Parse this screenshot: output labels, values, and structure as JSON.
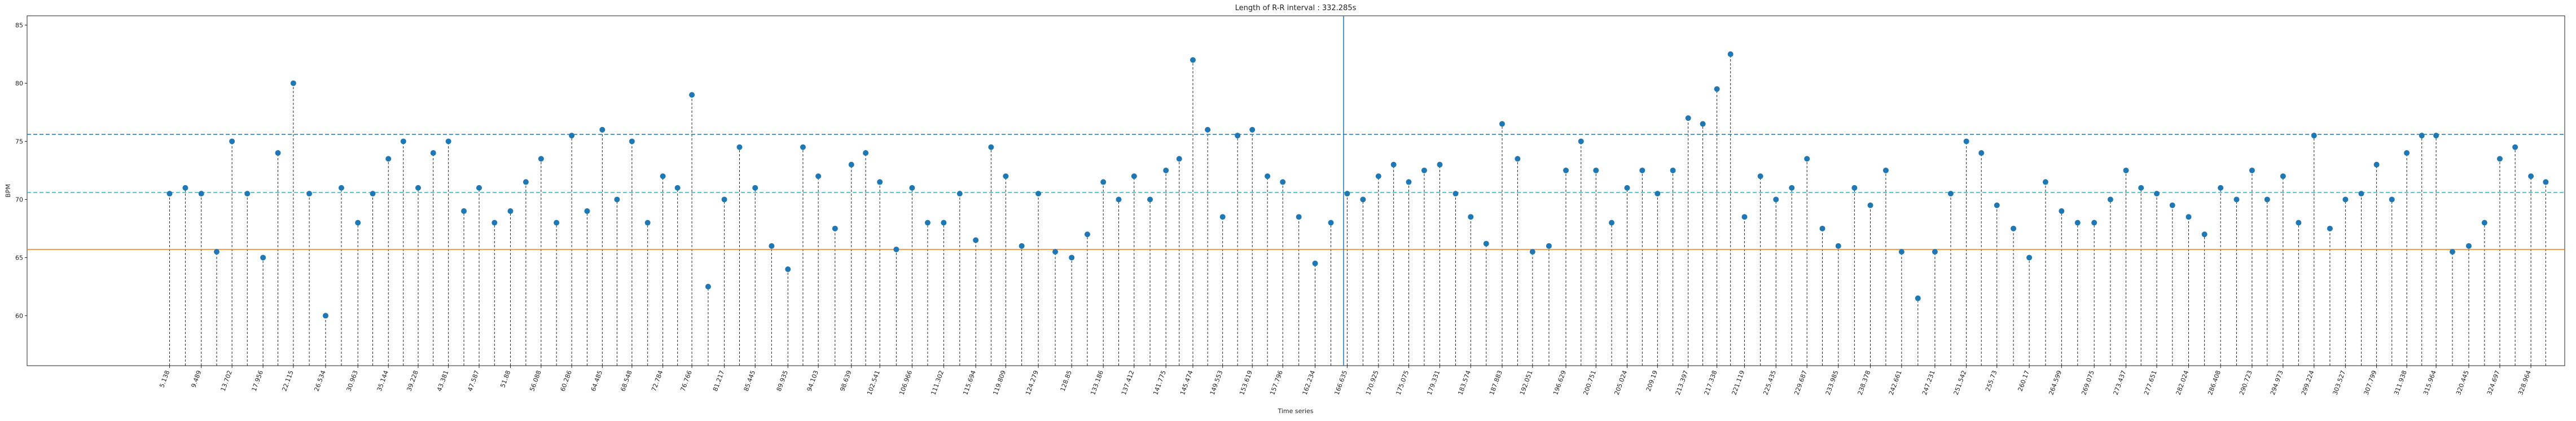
{
  "chart_data": {
    "type": "stem",
    "title": "Length of R-R interval : 332.285s",
    "xlabel": "Time series",
    "ylabel": "BPM",
    "marker_color": "#1f77b4",
    "stem_color": "#222222",
    "x": [
      5.138,
      7.3,
      9.489,
      11.6,
      13.702,
      15.8,
      17.956,
      20.0,
      22.115,
      24.3,
      26.534,
      28.7,
      30.963,
      33.0,
      35.144,
      37.2,
      39.228,
      41.3,
      43.381,
      45.5,
      47.587,
      49.7,
      51.88,
      54.0,
      56.088,
      58.2,
      60.286,
      62.4,
      64.485,
      66.5,
      68.548,
      70.7,
      72.784,
      74.8,
      76.766,
      79.0,
      81.217,
      83.3,
      85.445,
      87.7,
      89.935,
      92.0,
      94.103,
      96.4,
      98.639,
      100.6,
      102.541,
      104.8,
      106.966,
      109.1,
      111.302,
      113.5,
      115.694,
      117.8,
      119.809,
      122.0,
      124.279,
      126.6,
      128.85,
      131.0,
      133.186,
      135.3,
      137.412,
      139.6,
      141.775,
      143.6,
      145.474,
      147.5,
      149.553,
      151.6,
      153.619,
      155.7,
      157.796,
      160.0,
      162.234,
      164.4,
      166.635,
      168.8,
      170.925,
      173.0,
      175.075,
      177.2,
      179.331,
      181.5,
      183.574,
      185.7,
      187.883,
      190.0,
      192.051,
      194.3,
      196.629,
      198.7,
      200.751,
      202.9,
      205.024,
      207.1,
      209.19,
      211.3,
      213.397,
      215.4,
      217.338,
      219.2,
      221.119,
      223.3,
      225.435,
      227.6,
      229.687,
      231.8,
      233.985,
      236.2,
      238.378,
      240.5,
      242.661,
      244.9,
      247.231,
      249.4,
      251.542,
      253.6,
      255.73,
      258.0,
      260.17,
      262.4,
      264.599,
      266.8,
      269.075,
      271.3,
      273.437,
      275.5,
      277.651,
      279.8,
      282.024,
      284.2,
      286.408,
      288.6,
      290.723,
      292.8,
      294.973,
      297.1,
      299.224,
      301.4,
      303.527,
      305.7,
      307.799,
      309.9,
      311.938,
      314.0,
      315.964,
      318.2,
      320.445,
      322.6,
      324.697,
      326.8,
      328.964,
      331.0
    ],
    "values": [
      70.5,
      71,
      70.5,
      65.5,
      75,
      70.5,
      65,
      74,
      80,
      70.5,
      60,
      71,
      68,
      70.5,
      73.5,
      75,
      71,
      74,
      75,
      69,
      71,
      68,
      69,
      71.5,
      73.5,
      68,
      75.5,
      69,
      76,
      70,
      75,
      68,
      72,
      71,
      79,
      62.5,
      70,
      74.5,
      71,
      66,
      64,
      74.5,
      72,
      67.5,
      73,
      74,
      71.5,
      65.7,
      71,
      68,
      68,
      70.5,
      66.5,
      74.5,
      72,
      66,
      70.5,
      65.5,
      65,
      67,
      71.5,
      70,
      72,
      70,
      72.5,
      73.5,
      82,
      76,
      68.5,
      75.5,
      76,
      72,
      71.5,
      68.5,
      64.5,
      68,
      70.5,
      70,
      72,
      73,
      71.5,
      72.5,
      73,
      70.5,
      68.5,
      66.2,
      76.5,
      73.5,
      65.5,
      66,
      72.5,
      75,
      72.5,
      68,
      71,
      72.5,
      70.5,
      72.5,
      77,
      76.5,
      79.5,
      82.5,
      68.5,
      72,
      70,
      71,
      73.5,
      67.5,
      66,
      71,
      69.5,
      72.5,
      65.5,
      61.5,
      65.5,
      70.5,
      75,
      74,
      69.5,
      67.5,
      65,
      71.5,
      69,
      68,
      68,
      70,
      72.5,
      71,
      70.5,
      69.5,
      68.5,
      67,
      71,
      70,
      72.5,
      70,
      72,
      68,
      75.5,
      67.5,
      70,
      70.5,
      73,
      70,
      74,
      75.5,
      75.5,
      65.5,
      66,
      68,
      73.5,
      74.5,
      72,
      71.5
    ],
    "hlines": [
      {
        "y": 75.6,
        "color": "#1f77b4",
        "dash": true
      },
      {
        "y": 70.6,
        "color": "#17becf",
        "dash": true
      },
      {
        "y": 65.7,
        "color": "#ff7f0e",
        "dash": false
      }
    ],
    "vline": {
      "x": 166.14,
      "color": "#1f77b4"
    },
    "xlim": [
      -14.4,
      333.6
    ],
    "ylim": [
      55.7,
      85.8
    ],
    "yticks": [
      60,
      65,
      70,
      75,
      80,
      85
    ],
    "xticks": [
      5.138,
      9.489,
      13.702,
      17.956,
      22.115,
      26.534,
      30.963,
      35.144,
      39.228,
      43.381,
      47.587,
      51.88,
      56.088,
      60.286,
      64.485,
      68.548,
      72.784,
      76.766,
      81.217,
      85.445,
      89.935,
      94.103,
      98.639,
      102.541,
      106.966,
      111.302,
      115.694,
      119.809,
      124.279,
      128.85,
      133.186,
      137.412,
      141.775,
      145.474,
      149.553,
      153.619,
      157.796,
      162.234,
      166.635,
      170.925,
      175.075,
      179.331,
      183.574,
      187.883,
      192.051,
      196.629,
      200.751,
      205.024,
      209.19,
      213.397,
      217.338,
      221.119,
      225.435,
      229.687,
      233.985,
      238.378,
      242.661,
      247.231,
      251.542,
      255.73,
      260.17,
      264.599,
      269.075,
      273.437,
      277.651,
      282.024,
      286.408,
      290.723,
      294.973,
      299.224,
      303.527,
      307.799,
      311.938,
      315.964,
      320.445,
      324.697,
      328.964
    ]
  }
}
